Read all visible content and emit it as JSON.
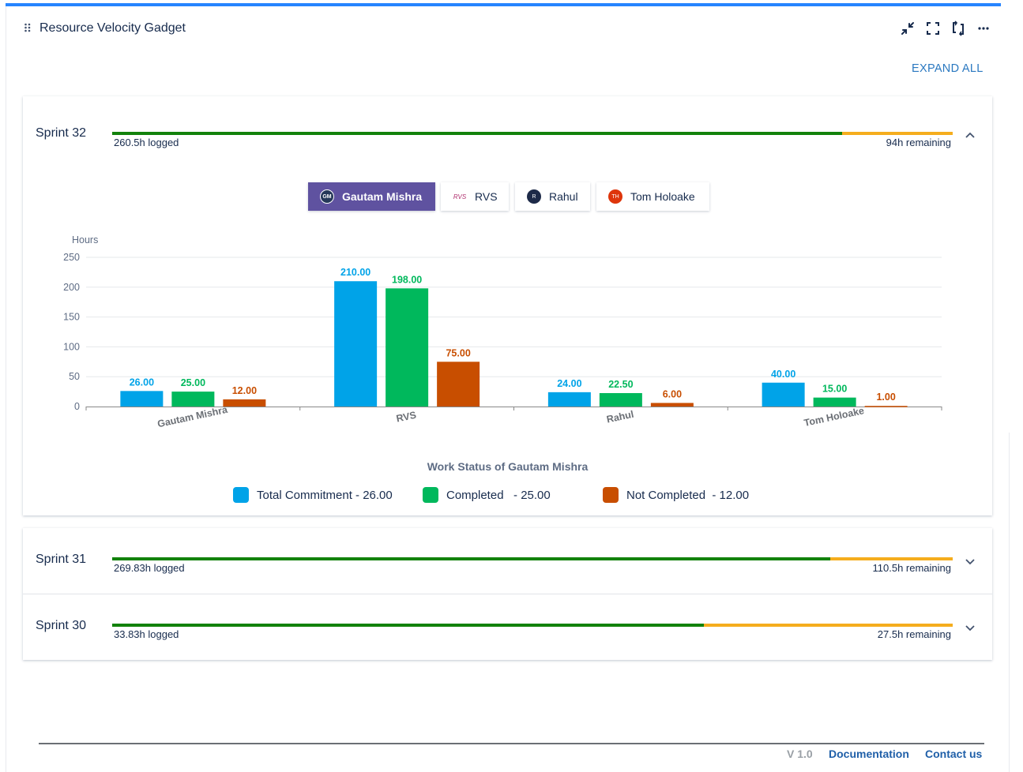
{
  "gadget": {
    "title": "Resource Velocity Gadget",
    "expand_all": "EXPAND ALL"
  },
  "header_icons": [
    "collapse-icon",
    "fullscreen-icon",
    "refresh-icon",
    "more-options-icon"
  ],
  "colors": {
    "accent_bar": "#2684ff",
    "logged": "#12820b",
    "remaining": "#f5ad1d",
    "total_commitment": "#00a3e8",
    "completed": "#00b85c",
    "not_completed": "#c84e00",
    "active_tab": "#5f52a0"
  },
  "sprints": [
    {
      "name": "Sprint 32",
      "logged": "260.5h logged",
      "remaining": "94h remaining",
      "logged_fraction": 0.868,
      "expanded": true
    },
    {
      "name": "Sprint 31",
      "logged": "269.83h logged",
      "remaining": "110.5h remaining",
      "logged_fraction": 0.854,
      "expanded": false
    },
    {
      "name": "Sprint 30",
      "logged": "33.83h logged",
      "remaining": "27.5h remaining",
      "logged_fraction": 0.704,
      "expanded": false
    }
  ],
  "member_tabs": [
    {
      "name": "Gautam Mishra",
      "initials": "GM",
      "active": true
    },
    {
      "name": "RVS",
      "initials": "RVS",
      "active": false
    },
    {
      "name": "Rahul",
      "initials": "R",
      "active": false
    },
    {
      "name": "Tom Holoake",
      "initials": "TH",
      "active": false
    }
  ],
  "chart_data": {
    "type": "bar",
    "ylabel": "Hours",
    "ylim": [
      0,
      250
    ],
    "yticks": [
      0,
      50,
      100,
      150,
      200,
      250
    ],
    "categories": [
      "Gautam Mishra",
      "RVS",
      "Rahul",
      "Tom Holoake"
    ],
    "series": [
      {
        "values": [
          26.0,
          210.0,
          24.0,
          40.0
        ],
        "labels": [
          "26.00",
          "210.00",
          "24.00",
          "40.00"
        ],
        "color": "#00a3e8"
      },
      {
        "values": [
          25.0,
          198.0,
          22.5,
          15.0
        ],
        "labels": [
          "25.00",
          "198.00",
          "22.50",
          "15.00"
        ],
        "color": "#00b85c"
      },
      {
        "values": [
          12.0,
          75.0,
          6.0,
          1.0
        ],
        "labels": [
          "12.00",
          "75.00",
          "6.00",
          "1.00"
        ],
        "color": "#c84e00"
      }
    ],
    "grid": true
  },
  "work_status": {
    "title": "Work Status of Gautam Mishra",
    "legend": [
      {
        "label": "Total Commitment - 26.00",
        "color": "#00a3e8"
      },
      {
        "label": "Completed   - 25.00",
        "color": "#00b85c"
      },
      {
        "label": "Not Completed  - 12.00",
        "color": "#c84e00"
      }
    ]
  },
  "footer": {
    "version": "V 1.0",
    "documentation": "Documentation",
    "contact": "Contact us"
  }
}
